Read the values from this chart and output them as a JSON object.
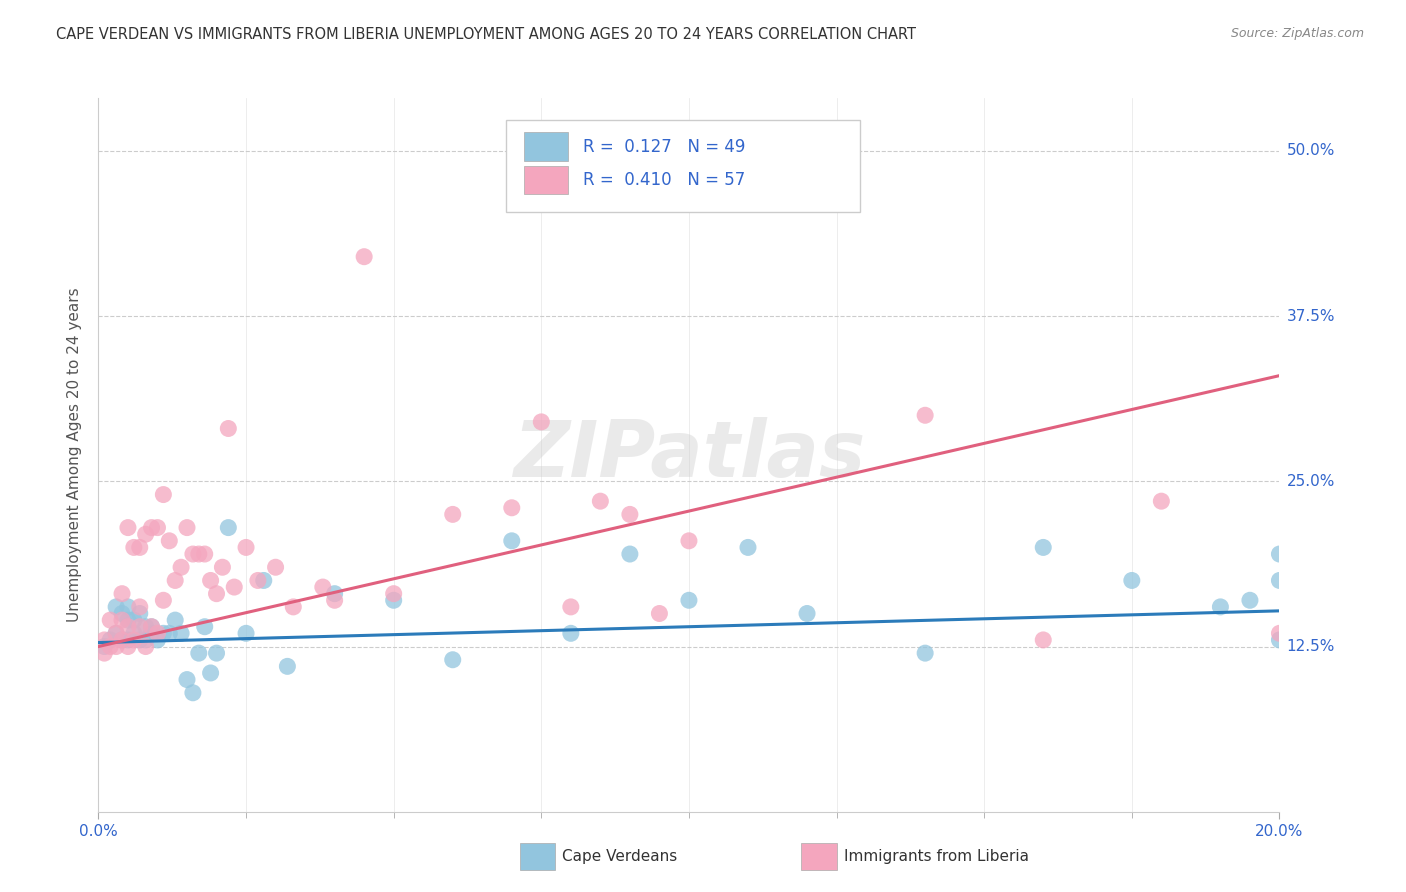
{
  "title": "CAPE VERDEAN VS IMMIGRANTS FROM LIBERIA UNEMPLOYMENT AMONG AGES 20 TO 24 YEARS CORRELATION CHART",
  "source": "Source: ZipAtlas.com",
  "ylabel": "Unemployment Among Ages 20 to 24 years",
  "ytick_labels": [
    "50.0%",
    "37.5%",
    "25.0%",
    "12.5%"
  ],
  "ytick_values": [
    0.5,
    0.375,
    0.25,
    0.125
  ],
  "xlim": [
    0.0,
    0.2
  ],
  "ylim": [
    0.0,
    0.54
  ],
  "blue_color": "#92c5de",
  "pink_color": "#f4a6be",
  "blue_line_color": "#2b7bba",
  "pink_line_color": "#e0607e",
  "legend_R1": "0.127",
  "legend_N1": "49",
  "legend_R2": "0.410",
  "legend_N2": "57",
  "blue_scatter_x": [
    0.001,
    0.002,
    0.003,
    0.003,
    0.004,
    0.004,
    0.005,
    0.005,
    0.005,
    0.006,
    0.006,
    0.007,
    0.007,
    0.008,
    0.008,
    0.009,
    0.009,
    0.01,
    0.011,
    0.012,
    0.013,
    0.014,
    0.015,
    0.016,
    0.017,
    0.018,
    0.019,
    0.02,
    0.022,
    0.025,
    0.028,
    0.032,
    0.04,
    0.05,
    0.06,
    0.07,
    0.08,
    0.09,
    0.1,
    0.11,
    0.12,
    0.14,
    0.16,
    0.175,
    0.19,
    0.195,
    0.2,
    0.2,
    0.2
  ],
  "blue_scatter_y": [
    0.125,
    0.13,
    0.135,
    0.155,
    0.13,
    0.15,
    0.13,
    0.145,
    0.155,
    0.135,
    0.145,
    0.13,
    0.15,
    0.14,
    0.13,
    0.135,
    0.14,
    0.13,
    0.135,
    0.135,
    0.145,
    0.135,
    0.1,
    0.09,
    0.12,
    0.14,
    0.105,
    0.12,
    0.215,
    0.135,
    0.175,
    0.11,
    0.165,
    0.16,
    0.115,
    0.205,
    0.135,
    0.195,
    0.16,
    0.2,
    0.15,
    0.12,
    0.2,
    0.175,
    0.155,
    0.16,
    0.13,
    0.195,
    0.175
  ],
  "pink_scatter_x": [
    0.001,
    0.001,
    0.002,
    0.002,
    0.003,
    0.003,
    0.004,
    0.004,
    0.004,
    0.005,
    0.005,
    0.005,
    0.006,
    0.006,
    0.007,
    0.007,
    0.007,
    0.008,
    0.008,
    0.009,
    0.009,
    0.01,
    0.01,
    0.011,
    0.011,
    0.012,
    0.013,
    0.014,
    0.015,
    0.016,
    0.017,
    0.018,
    0.019,
    0.02,
    0.021,
    0.022,
    0.023,
    0.025,
    0.027,
    0.03,
    0.033,
    0.038,
    0.04,
    0.045,
    0.05,
    0.06,
    0.07,
    0.075,
    0.08,
    0.085,
    0.09,
    0.095,
    0.1,
    0.14,
    0.16,
    0.18,
    0.2
  ],
  "pink_scatter_y": [
    0.12,
    0.13,
    0.125,
    0.145,
    0.125,
    0.135,
    0.13,
    0.145,
    0.165,
    0.125,
    0.14,
    0.215,
    0.13,
    0.2,
    0.14,
    0.155,
    0.2,
    0.125,
    0.21,
    0.14,
    0.215,
    0.135,
    0.215,
    0.16,
    0.24,
    0.205,
    0.175,
    0.185,
    0.215,
    0.195,
    0.195,
    0.195,
    0.175,
    0.165,
    0.185,
    0.29,
    0.17,
    0.2,
    0.175,
    0.185,
    0.155,
    0.17,
    0.16,
    0.42,
    0.165,
    0.225,
    0.23,
    0.295,
    0.155,
    0.235,
    0.225,
    0.15,
    0.205,
    0.3,
    0.13,
    0.235,
    0.135
  ],
  "blue_line_x": [
    0.0,
    0.2
  ],
  "blue_line_y": [
    0.128,
    0.152
  ],
  "pink_line_x": [
    0.0,
    0.2
  ],
  "pink_line_y": [
    0.125,
    0.33
  ],
  "watermark_text": "ZIPatlas",
  "background_color": "#ffffff",
  "grid_color": "#cccccc",
  "legend_text_color": "#3366cc",
  "axis_text_color": "#555555"
}
